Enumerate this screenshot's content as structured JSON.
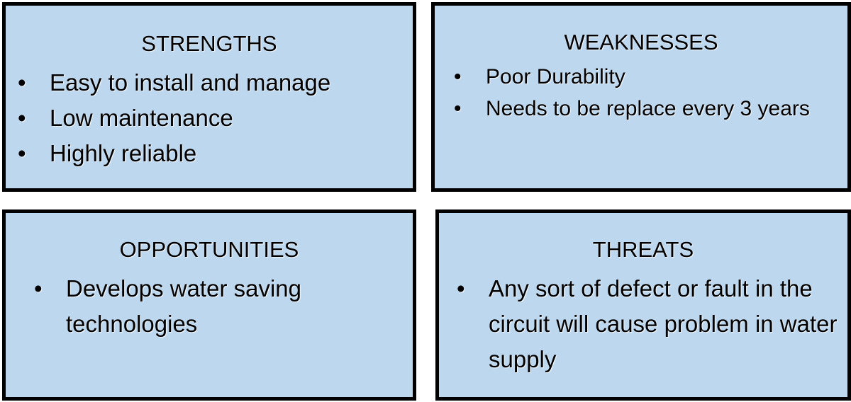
{
  "swot": {
    "strengths": {
      "title": "STRENGTHS",
      "items": [
        "Easy to install and manage",
        "Low maintenance",
        "Highly reliable"
      ]
    },
    "weaknesses": {
      "title": "WEAKNESSES",
      "items": [
        "Poor Durability",
        "Needs to be replace every 3 years"
      ]
    },
    "opportunities": {
      "title": "OPPORTUNITIES",
      "items": [
        "Develops water saving technologies"
      ]
    },
    "threats": {
      "title": "THREATS",
      "items": [
        "Any sort of defect or fault in the circuit will cause problem in water supply"
      ]
    }
  },
  "bullet_char": "•",
  "colors": {
    "box_fill": "#bdd7ee",
    "border": "#000000"
  }
}
